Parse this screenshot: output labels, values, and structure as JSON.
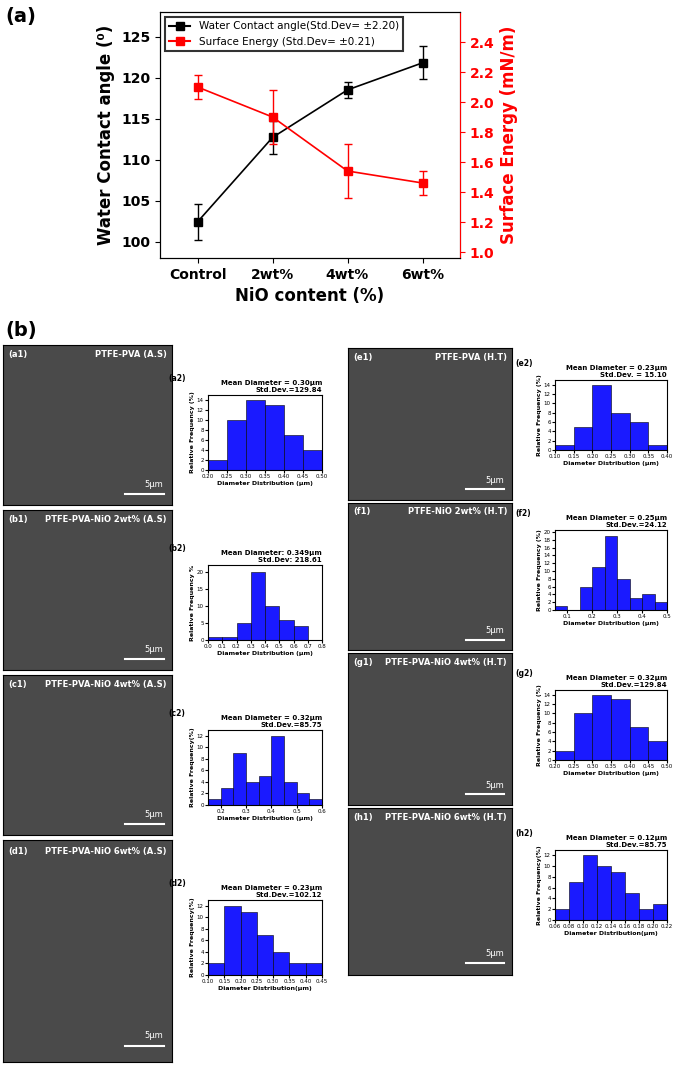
{
  "chart_data": [
    {
      "type": "line",
      "panel": "(a)",
      "categories": [
        "Control",
        "2wt%",
        "4wt%",
        "6wt%"
      ],
      "xlabel": "NiO content (%)",
      "ylabel": "Water Contact angle (⁰)",
      "y2label": "Surface Energy (mN/m)",
      "ylim": [
        98,
        128
      ],
      "yticks": [
        100,
        105,
        110,
        115,
        120,
        125
      ],
      "y2lim": [
        0.96,
        2.6
      ],
      "y2ticks": [
        1.0,
        1.2,
        1.4,
        1.6,
        1.8,
        2.0,
        2.2,
        2.4
      ],
      "legend": "upper left",
      "series": [
        {
          "name": "Water Contact angle(Std.Dev= ±2.20)",
          "color": "#000000",
          "marker": "square",
          "line_style": "solid",
          "values": [
            102.4,
            112.7,
            118.5,
            121.8
          ],
          "errors": [
            2.2,
            2.0,
            1.0,
            2.0
          ]
        },
        {
          "name": "Surface Energy (Std.Dev= ±0.21)",
          "color": "#ff0000",
          "marker": "square",
          "line_style": "solid",
          "axis": "y2",
          "values": [
            2.1,
            1.9,
            1.54,
            1.46
          ],
          "errors": [
            0.08,
            0.18,
            0.18,
            0.08
          ]
        }
      ]
    },
    {
      "type": "histogram",
      "panel": "(a2)",
      "annotations": [
        "Mean Diameter = 0.30μm",
        "Std.Dev.=129.84"
      ],
      "xlabel": "Diameter Distribution (μm)",
      "ylabel": "Relative Frequency (%)",
      "color": "#1a1aff",
      "bins": [
        0.2,
        0.25,
        0.3,
        0.35,
        0.4,
        0.45,
        0.5
      ],
      "counts": [
        2,
        10,
        14,
        13,
        7,
        4
      ],
      "xlim": [
        0.2,
        0.5
      ],
      "xticks": [
        {
          "value": 0.2,
          "label": "0.20"
        },
        0.25,
        {
          "value": 0.3,
          "label": "0.30"
        },
        0.35,
        {
          "value": 0.4,
          "label": "0.40"
        },
        0.45,
        {
          "value": 0.5,
          "label": "0.50"
        }
      ],
      "ylim": [
        0,
        15
      ],
      "yticks": [
        0,
        2,
        4,
        6,
        8,
        10,
        12,
        14
      ]
    },
    {
      "type": "histogram",
      "panel": "(b2)",
      "annotations": [
        "Mean Diameter: 0.349μm",
        "Std.Dev: 218.61"
      ],
      "xlabel": "Diameter Distribution (μm)",
      "ylabel": "Relative Frequency %",
      "color": "#1a1aff",
      "bins": [
        0.0,
        0.1,
        0.2,
        0.3,
        0.4,
        0.5,
        0.6,
        0.7
      ],
      "counts": [
        1,
        1,
        5,
        20,
        10,
        6,
        4
      ],
      "xlim": [
        0.0,
        0.8
      ],
      "xticks": [
        0.0,
        0.1,
        0.2,
        0.3,
        0.4,
        0.5,
        0.6,
        0.7,
        0.8
      ],
      "ylim": [
        0,
        22
      ],
      "yticks": [
        0,
        5,
        10,
        15,
        20
      ]
    },
    {
      "type": "histogram",
      "panel": "(c2)",
      "annotations": [
        "Mean Diameter = 0.32μm",
        "Std.Dev.=85.75"
      ],
      "xlabel": "Diameter Distribution (μm)",
      "ylabel": "Relative Frequency(%)",
      "color": "#1a1aff",
      "bins": [
        0.15,
        0.2,
        0.25,
        0.3,
        0.35,
        0.4,
        0.45,
        0.5,
        0.55,
        0.6
      ],
      "counts": [
        1,
        3,
        9,
        4,
        5,
        12,
        4,
        2,
        1
      ],
      "xlim": [
        0.15,
        0.6
      ],
      "xticks": [
        0.2,
        0.3,
        0.4,
        0.5,
        0.6
      ],
      "ylim": [
        0,
        13
      ],
      "yticks": [
        0,
        2,
        4,
        6,
        8,
        10,
        12
      ]
    },
    {
      "type": "histogram",
      "panel": "(d2)",
      "annotations": [
        "Mean Diameter = 0.23μm",
        "Std.Dev.=102.12"
      ],
      "xlabel": "Diameter Distribution(μm)",
      "ylabel": "Relative Frequency(%)",
      "color": "#1a1aff",
      "bins": [
        0.1,
        0.15,
        0.2,
        0.25,
        0.3,
        0.35,
        0.4,
        0.45
      ],
      "counts": [
        2,
        12,
        11,
        7,
        4,
        2,
        2
      ],
      "xlim": [
        0.1,
        0.45
      ],
      "xticks": [
        {
          "value": 0.1,
          "label": "0.10"
        },
        0.15,
        {
          "value": 0.2,
          "label": "0.20"
        },
        0.25,
        {
          "value": 0.3,
          "label": "0.30"
        },
        0.35,
        {
          "value": 0.4,
          "label": "0.40"
        },
        0.45
      ],
      "ylim": [
        0,
        13
      ],
      "yticks": [
        0,
        2,
        4,
        6,
        8,
        10,
        12
      ]
    },
    {
      "type": "histogram",
      "panel": "(e2)",
      "annotations": [
        "Mean Diameter = 0.23μm",
        "Std.Dev. = 15.10"
      ],
      "xlabel": "Diameter Distribution (μm)",
      "ylabel": "Relative Frequency (%)",
      "color": "#1a1aff",
      "bins": [
        0.1,
        0.15,
        0.2,
        0.25,
        0.3,
        0.35,
        0.4
      ],
      "counts": [
        1,
        5,
        14,
        8,
        6,
        1
      ],
      "xlim": [
        0.1,
        0.4
      ],
      "xticks": [
        {
          "value": 0.1,
          "label": "0.10"
        },
        0.15,
        {
          "value": 0.2,
          "label": "0.20"
        },
        0.25,
        {
          "value": 0.3,
          "label": "0.30"
        },
        0.35,
        {
          "value": 0.4,
          "label": "0.40"
        }
      ],
      "ylim": [
        0,
        15
      ],
      "yticks": [
        0,
        2,
        4,
        6,
        8,
        10,
        12,
        14
      ]
    },
    {
      "type": "histogram",
      "panel": "(f2)",
      "annotations": [
        "Mean Diameter = 0.25μm",
        "Std.Dev.=24.12"
      ],
      "xlabel": "Diameter Distribution (μm)",
      "ylabel": "Relative Frequency (%)",
      "color": "#1a1aff",
      "bins": [
        0.05,
        0.1,
        0.15,
        0.2,
        0.25,
        0.3,
        0.35,
        0.4,
        0.45,
        0.5
      ],
      "counts": [
        1,
        0,
        6,
        11,
        19,
        8,
        3,
        4,
        2
      ],
      "xlim": [
        0.05,
        0.5
      ],
      "xticks": [
        0.1,
        0.2,
        0.3,
        0.4,
        0.5
      ],
      "ylim": [
        0,
        20.5
      ],
      "yticks": [
        0,
        2,
        4,
        6,
        8,
        10,
        12,
        14,
        16,
        18,
        20
      ]
    },
    {
      "type": "histogram",
      "panel": "(g2)",
      "annotations": [
        "Mean Diameter = 0.32μm",
        "Std.Dev.=129.84"
      ],
      "xlabel": "Diameter Distribution (μm)",
      "ylabel": "Relative Frequency (%)",
      "color": "#1a1aff",
      "bins": [
        0.2,
        0.25,
        0.3,
        0.35,
        0.4,
        0.45,
        0.5
      ],
      "counts": [
        2,
        10,
        14,
        13,
        7,
        4
      ],
      "xlim": [
        0.2,
        0.5
      ],
      "xticks": [
        {
          "value": 0.2,
          "label": "0.20"
        },
        0.25,
        {
          "value": 0.3,
          "label": "0.30"
        },
        0.35,
        {
          "value": 0.4,
          "label": "0.40"
        },
        0.45,
        {
          "value": 0.5,
          "label": "0.50"
        }
      ],
      "ylim": [
        0,
        15
      ],
      "yticks": [
        0,
        2,
        4,
        6,
        8,
        10,
        12,
        14
      ]
    },
    {
      "type": "histogram",
      "panel": "(h2)",
      "annotations": [
        "Mean Diameter = 0.12μm",
        "Std.Dev.=85.75"
      ],
      "xlabel": "Diameter Distribution(μm)",
      "ylabel": "Relative Frequency(%)",
      "color": "#1a1aff",
      "bins": [
        0.06,
        0.08,
        0.1,
        0.12,
        0.14,
        0.16,
        0.18,
        0.2,
        0.22
      ],
      "counts": [
        2,
        7,
        12,
        10,
        9,
        5,
        2,
        3
      ],
      "xlim": [
        0.06,
        0.22
      ],
      "xticks": [
        0.06,
        0.08,
        {
          "value": 0.1,
          "label": "0.10"
        },
        0.12,
        0.14,
        0.16,
        0.18,
        {
          "value": 0.2,
          "label": "0.20"
        },
        0.22
      ],
      "ylim": [
        0,
        13
      ],
      "yticks": [
        0,
        2,
        4,
        6,
        8,
        10,
        12
      ]
    }
  ],
  "sem_images": {
    "panel": "(b)",
    "scale_bar": "5μm",
    "images": [
      {
        "label": "(a1)",
        "title": "PTFE-PVA (A.S)"
      },
      {
        "label": "(b1)",
        "title": "PTFE-PVA-NiO 2wt% (A.S)"
      },
      {
        "label": "(c1)",
        "title": "PTFE-PVA-NiO 4wt% (A.S)"
      },
      {
        "label": "(d1)",
        "title": "PTFE-PVA-NiO 6wt% (A.S)"
      },
      {
        "label": "(e1)",
        "title": "PTFE-PVA (H.T)"
      },
      {
        "label": "(f1)",
        "title": "PTFE-NiO 2wt% (H.T)"
      },
      {
        "label": "(g1)",
        "title": "PTFE-PVA-NiO 4wt% (H.T)"
      },
      {
        "label": "(h1)",
        "title": "PTFE-PVA-NiO 6wt% (H.T)"
      }
    ]
  }
}
